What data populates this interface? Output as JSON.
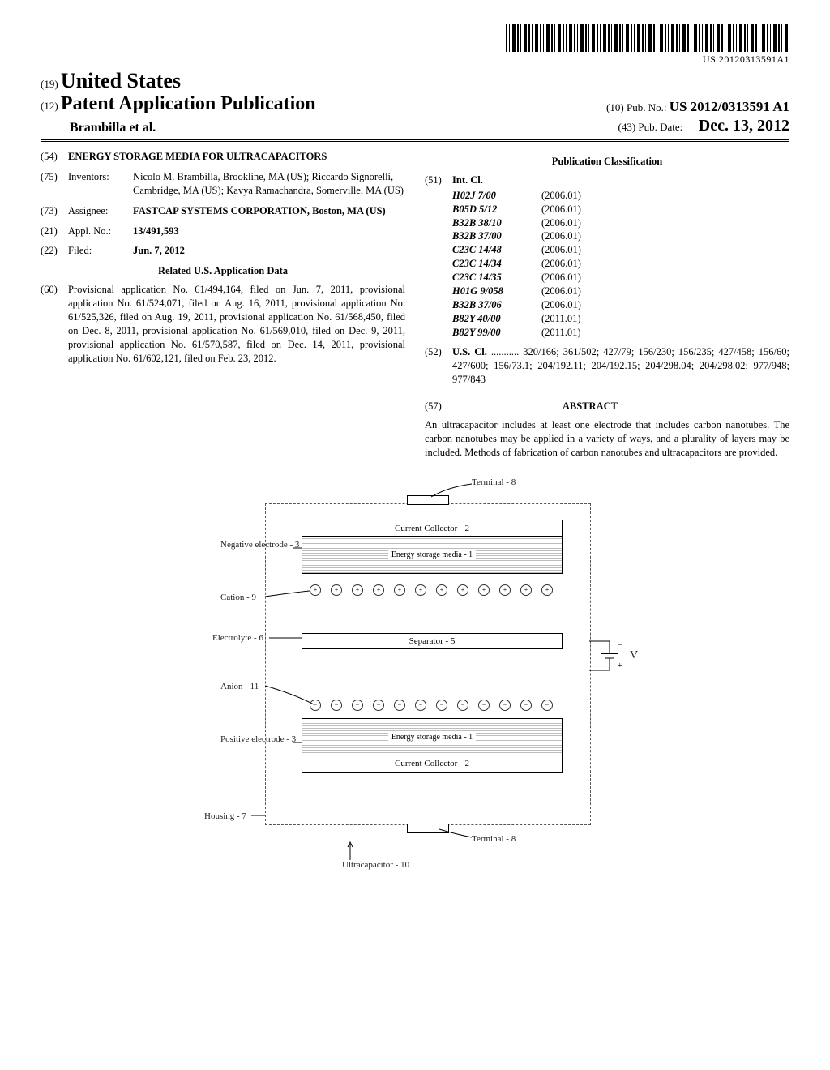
{
  "barcode_text": "US 20120313591A1",
  "header": {
    "inid19": "(19)",
    "country": "United States",
    "inid12": "(12)",
    "pub_type": "Patent Application Publication",
    "authors_line": "Brambilla et al.",
    "inid10": "(10)",
    "pubno_label": "Pub. No.:",
    "pubno": "US 2012/0313591 A1",
    "inid43": "(43)",
    "pubdate_label": "Pub. Date:",
    "pubdate": "Dec. 13, 2012"
  },
  "left": {
    "f54": {
      "num": "(54)",
      "title": "ENERGY STORAGE MEDIA FOR ULTRACAPACITORS"
    },
    "f75": {
      "num": "(75)",
      "label": "Inventors:",
      "val": "Nicolo M. Brambilla, Brookline, MA (US); Riccardo Signorelli, Cambridge, MA (US); Kavya Ramachandra, Somerville, MA (US)"
    },
    "f73": {
      "num": "(73)",
      "label": "Assignee:",
      "val": "FASTCAP SYSTEMS CORPORATION, Boston, MA (US)"
    },
    "f21": {
      "num": "(21)",
      "label": "Appl. No.:",
      "val": "13/491,593"
    },
    "f22": {
      "num": "(22)",
      "label": "Filed:",
      "val": "Jun. 7, 2012"
    },
    "related_title": "Related U.S. Application Data",
    "f60": {
      "num": "(60)",
      "val": "Provisional application No. 61/494,164, filed on Jun. 7, 2011, provisional application No. 61/524,071, filed on Aug. 16, 2011, provisional application No. 61/525,326, filed on Aug. 19, 2011, provisional application No. 61/568,450, filed on Dec. 8, 2011, provisional application No. 61/569,010, filed on Dec. 9, 2011, provisional application No. 61/570,587, filed on Dec. 14, 2011, provisional application No. 61/602,121, filed on Feb. 23, 2012."
    }
  },
  "right": {
    "pubclass_title": "Publication Classification",
    "f51": {
      "num": "(51)",
      "label": "Int. Cl."
    },
    "int_cl": [
      {
        "code": "H02J 7/00",
        "yr": "(2006.01)"
      },
      {
        "code": "B05D 5/12",
        "yr": "(2006.01)"
      },
      {
        "code": "B32B 38/10",
        "yr": "(2006.01)"
      },
      {
        "code": "B32B 37/00",
        "yr": "(2006.01)"
      },
      {
        "code": "C23C 14/48",
        "yr": "(2006.01)"
      },
      {
        "code": "C23C 14/34",
        "yr": "(2006.01)"
      },
      {
        "code": "C23C 14/35",
        "yr": "(2006.01)"
      },
      {
        "code": "H01G 9/058",
        "yr": "(2006.01)"
      },
      {
        "code": "B32B 37/06",
        "yr": "(2006.01)"
      },
      {
        "code": "B82Y 40/00",
        "yr": "(2011.01)"
      },
      {
        "code": "B82Y 99/00",
        "yr": "(2011.01)"
      }
    ],
    "f52": {
      "num": "(52)",
      "label": "U.S. Cl.",
      "val": " ........... 320/166; 361/502; 427/79; 156/230; 156/235; 427/458; 156/60; 427/600; 156/73.1; 204/192.11; 204/192.15; 204/298.04; 204/298.02; 977/948; 977/843"
    },
    "f57": {
      "num": "(57)",
      "title": "ABSTRACT"
    },
    "abstract": "An ultracapacitor includes at least one electrode that includes carbon nanotubes. The carbon nanotubes may be applied in a variety of ways, and a plurality of layers may be included. Methods of fabrication of carbon nanotubes and ultracapacitors are provided."
  },
  "figure": {
    "terminal_top": "Terminal - 8",
    "current_collector": "Current Collector - 2",
    "energy_media": "Energy storage media - 1",
    "neg_electrode": "Negative electrode - 3",
    "cation": "Cation - 9",
    "electrolyte": "Electrolyte - 6",
    "separator": "Separator - 5",
    "anion": "Anion - 11",
    "pos_electrode": "Positive electrode - 3",
    "housing": "Housing - 7",
    "terminal_bot": "Terminal - 8",
    "caption": "Ultracapacitor - 10",
    "voltage": "V"
  }
}
